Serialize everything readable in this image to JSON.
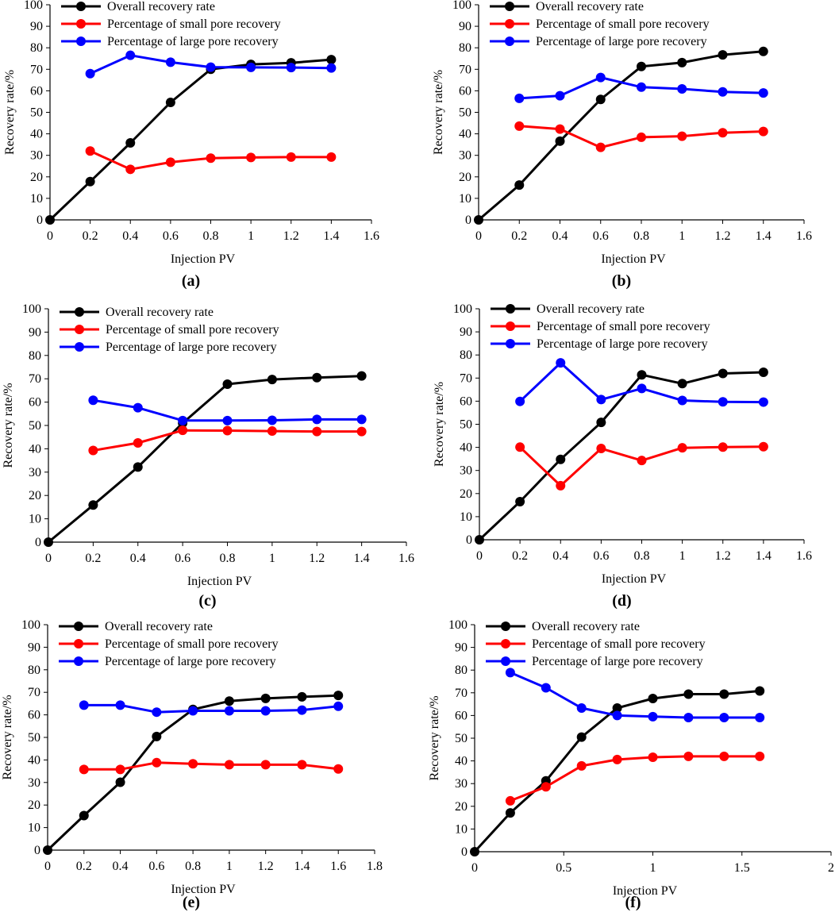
{
  "chart_data": [
    {
      "type": "line",
      "panel_label": "(a)",
      "xlabel": "Injection PV",
      "ylabel": "Recovery rate/%",
      "xlim": [
        0,
        1.6
      ],
      "ylim": [
        0,
        100
      ],
      "xticks": [
        0,
        0.2,
        0.4,
        0.6,
        0.8,
        1,
        1.2,
        1.4,
        1.6
      ],
      "yticks": [
        0,
        10,
        20,
        30,
        40,
        50,
        60,
        70,
        80,
        90,
        100
      ],
      "legend_position": "top-left",
      "series": [
        {
          "name": "Overall recovery rate",
          "color": "#000000",
          "x": [
            0,
            0.2,
            0.4,
            0.6,
            0.8,
            1,
            1.2,
            1.4
          ],
          "values": [
            0,
            17.8,
            35.8,
            54.6,
            70,
            72.3,
            73,
            74.5
          ]
        },
        {
          "name": "Percentage of small pore recovery",
          "color": "#ff0000",
          "x": [
            0.2,
            0.4,
            0.6,
            0.8,
            1,
            1.2,
            1.4
          ],
          "values": [
            32,
            23.5,
            26.8,
            28.7,
            29,
            29.2,
            29.2
          ]
        },
        {
          "name": "Percentage of large pore recovery",
          "color": "#0000ff",
          "x": [
            0.2,
            0.4,
            0.6,
            0.8,
            1,
            1.2,
            1.4
          ],
          "values": [
            68,
            76.5,
            73.3,
            71,
            70.9,
            70.8,
            70.6
          ]
        }
      ]
    },
    {
      "type": "line",
      "panel_label": "(b)",
      "xlabel": "Injection PV",
      "ylabel": "Recovery rate/%",
      "xlim": [
        0,
        1.6
      ],
      "ylim": [
        0,
        100
      ],
      "xticks": [
        0,
        0.2,
        0.4,
        0.6,
        0.8,
        1,
        1.2,
        1.4,
        1.6
      ],
      "yticks": [
        0,
        10,
        20,
        30,
        40,
        50,
        60,
        70,
        80,
        90,
        100
      ],
      "legend_position": "top-left",
      "series": [
        {
          "name": "Overall recovery rate",
          "color": "#000000",
          "x": [
            0,
            0.2,
            0.4,
            0.6,
            0.8,
            1,
            1.2,
            1.4
          ],
          "values": [
            0,
            16.2,
            36.6,
            56,
            71.3,
            73.1,
            76.7,
            78.3
          ]
        },
        {
          "name": "Percentage of small pore recovery",
          "color": "#ff0000",
          "x": [
            0.2,
            0.4,
            0.6,
            0.8,
            1,
            1.2,
            1.4
          ],
          "values": [
            43.6,
            42.2,
            33.7,
            38.4,
            38.9,
            40.5,
            41.1
          ]
        },
        {
          "name": "Percentage of large pore recovery",
          "color": "#0000ff",
          "x": [
            0.2,
            0.4,
            0.6,
            0.8,
            1,
            1.2,
            1.4
          ],
          "values": [
            56.5,
            57.7,
            66.2,
            61.7,
            60.9,
            59.5,
            59
          ]
        }
      ]
    },
    {
      "type": "line",
      "panel_label": "(c)",
      "xlabel": "Injection PV",
      "ylabel": "Recovery rate/%",
      "xlim": [
        0,
        1.6
      ],
      "ylim": [
        0,
        100
      ],
      "xticks": [
        0,
        0.2,
        0.4,
        0.6,
        0.8,
        1,
        1.2,
        1.4,
        1.6
      ],
      "yticks": [
        0,
        10,
        20,
        30,
        40,
        50,
        60,
        70,
        80,
        90,
        100
      ],
      "legend_position": "top-left",
      "series": [
        {
          "name": "Overall recovery rate",
          "color": "#000000",
          "x": [
            0,
            0.2,
            0.4,
            0.6,
            0.8,
            1,
            1.2,
            1.4
          ],
          "values": [
            0,
            15.9,
            32.2,
            51,
            67.7,
            69.7,
            70.5,
            71.2
          ]
        },
        {
          "name": "Percentage of small pore recovery",
          "color": "#ff0000",
          "x": [
            0.2,
            0.4,
            0.6,
            0.8,
            1,
            1.2,
            1.4
          ],
          "values": [
            39.3,
            42.5,
            47.9,
            47.8,
            47.6,
            47.4,
            47.4
          ]
        },
        {
          "name": "Percentage of large pore recovery",
          "color": "#0000ff",
          "x": [
            0.2,
            0.4,
            0.6,
            0.8,
            1,
            1.2,
            1.4
          ],
          "values": [
            60.8,
            57.6,
            52.1,
            52.1,
            52.2,
            52.6,
            52.6
          ]
        }
      ]
    },
    {
      "type": "line",
      "panel_label": "(d)",
      "xlabel": "Injection PV",
      "ylabel": "Recovery rate/%",
      "xlim": [
        0,
        1.6
      ],
      "ylim": [
        0,
        100
      ],
      "xticks": [
        0,
        0.2,
        0.4,
        0.6,
        0.8,
        1,
        1.2,
        1.4,
        1.6
      ],
      "yticks": [
        0,
        10,
        20,
        30,
        40,
        50,
        60,
        70,
        80,
        90,
        100
      ],
      "legend_position": "top-left",
      "series": [
        {
          "name": "Overall recovery rate",
          "color": "#000000",
          "x": [
            0,
            0.2,
            0.4,
            0.6,
            0.8,
            1,
            1.2,
            1.4
          ],
          "values": [
            0,
            16.5,
            34.8,
            50.8,
            71.4,
            67.6,
            72,
            72.5
          ]
        },
        {
          "name": "Percentage of small pore recovery",
          "color": "#ff0000",
          "x": [
            0.2,
            0.4,
            0.6,
            0.8,
            1,
            1.2,
            1.4
          ],
          "values": [
            40.1,
            23.4,
            39.5,
            34.3,
            39.8,
            40.1,
            40.3
          ]
        },
        {
          "name": "Percentage of large pore recovery",
          "color": "#0000ff",
          "x": [
            0.2,
            0.4,
            0.6,
            0.8,
            1,
            1.2,
            1.4
          ],
          "values": [
            59.9,
            76.6,
            60.7,
            65.5,
            60.3,
            59.7,
            59.6
          ]
        }
      ]
    },
    {
      "type": "line",
      "panel_label": "(e)",
      "xlabel": "Injection PV",
      "ylabel": "Recovery rate/%",
      "xlim": [
        0,
        1.8
      ],
      "ylim": [
        0,
        100
      ],
      "xticks": [
        0,
        0.2,
        0.4,
        0.6,
        0.8,
        1,
        1.2,
        1.4,
        1.6,
        1.8
      ],
      "yticks": [
        0,
        10,
        20,
        30,
        40,
        50,
        60,
        70,
        80,
        90,
        100
      ],
      "legend_position": "top-left",
      "series": [
        {
          "name": "Overall recovery rate",
          "color": "#000000",
          "x": [
            0,
            0.2,
            0.4,
            0.6,
            0.8,
            1,
            1.2,
            1.4,
            1.6
          ],
          "values": [
            0,
            15.3,
            30.1,
            50.4,
            62.4,
            66.1,
            67.3,
            68,
            68.6
          ]
        },
        {
          "name": "Percentage of small pore recovery",
          "color": "#ff0000",
          "x": [
            0.2,
            0.4,
            0.6,
            0.8,
            1,
            1.2,
            1.4,
            1.6
          ],
          "values": [
            35.8,
            35.8,
            38.8,
            38.3,
            37.9,
            37.9,
            37.9,
            36
          ]
        },
        {
          "name": "Percentage of large pore recovery",
          "color": "#0000ff",
          "x": [
            0.2,
            0.4,
            0.6,
            0.8,
            1,
            1.2,
            1.4,
            1.6
          ],
          "values": [
            64.3,
            64.3,
            61.2,
            61.8,
            61.8,
            61.8,
            62.1,
            63.8
          ]
        }
      ]
    },
    {
      "type": "line",
      "panel_label": "(f)",
      "xlabel": "Injection PV",
      "ylabel": "Recovery rate/%",
      "xlim": [
        0,
        2
      ],
      "ylim": [
        0,
        100
      ],
      "xticks": [
        0,
        0.5,
        1,
        1.5,
        2
      ],
      "yticks": [
        0,
        10,
        20,
        30,
        40,
        50,
        60,
        70,
        80,
        90,
        100
      ],
      "legend_position": "top-left",
      "series": [
        {
          "name": "Overall recovery rate",
          "color": "#000000",
          "x": [
            0,
            0.2,
            0.4,
            0.6,
            0.8,
            1,
            1.2,
            1.4,
            1.6
          ],
          "values": [
            0,
            17.1,
            31.2,
            50.5,
            63.3,
            67.5,
            69.4,
            69.4,
            70.8
          ]
        },
        {
          "name": "Percentage of small pore recovery",
          "color": "#ff0000",
          "x": [
            0.2,
            0.4,
            0.6,
            0.8,
            1,
            1.2,
            1.4,
            1.6
          ],
          "values": [
            22.4,
            28.6,
            37.8,
            40.6,
            41.6,
            42,
            42,
            42
          ]
        },
        {
          "name": "Percentage of large pore recovery",
          "color": "#0000ff",
          "x": [
            0.2,
            0.4,
            0.6,
            0.8,
            1,
            1.2,
            1.4,
            1.6
          ],
          "values": [
            78.9,
            72.2,
            63.3,
            60,
            59.5,
            59.1,
            59.1,
            59.1
          ]
        }
      ]
    }
  ]
}
